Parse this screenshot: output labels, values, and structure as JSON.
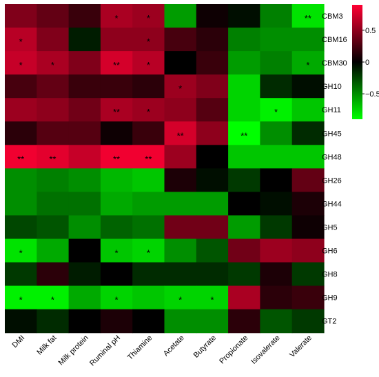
{
  "chart_data": {
    "type": "heatmap",
    "rows": [
      "CBM3",
      "CBM16",
      "CBM30",
      "GH10",
      "GH11",
      "GH45",
      "GH48",
      "GH26",
      "GH44",
      "GH5",
      "GH6",
      "GH8",
      "GH9",
      "GT2"
    ],
    "columns": [
      "DMI",
      "Milk fat",
      "Milk protein",
      "Ruminal pH",
      "Thiamine",
      "Acetate",
      "Butyrate",
      "Propionate",
      "Isovalerate",
      "Valerate"
    ],
    "values": [
      [
        0.45,
        0.35,
        0.2,
        0.6,
        0.55,
        -0.55,
        0.05,
        -0.05,
        -0.45,
        -0.8
      ],
      [
        0.65,
        0.45,
        -0.1,
        0.5,
        0.5,
        0.25,
        0.15,
        -0.45,
        -0.5,
        -0.5
      ],
      [
        0.7,
        0.6,
        0.45,
        0.75,
        0.65,
        0.0,
        0.2,
        -0.55,
        -0.45,
        -0.6
      ],
      [
        0.25,
        0.35,
        0.2,
        0.2,
        0.15,
        0.55,
        0.45,
        -0.75,
        -0.15,
        -0.05
      ],
      [
        0.55,
        0.5,
        0.4,
        0.6,
        0.55,
        0.5,
        0.3,
        -0.75,
        -0.85,
        -0.7
      ],
      [
        0.15,
        0.3,
        0.3,
        0.05,
        0.2,
        0.75,
        0.5,
        -0.9,
        -0.5,
        -0.15
      ],
      [
        0.85,
        0.8,
        0.7,
        0.85,
        0.85,
        0.55,
        0.0,
        -0.7,
        -0.7,
        -0.7
      ],
      [
        -0.5,
        -0.45,
        -0.5,
        -0.65,
        -0.7,
        0.1,
        -0.05,
        -0.2,
        0.0,
        0.35
      ],
      [
        -0.5,
        -0.4,
        -0.4,
        -0.6,
        -0.55,
        -0.55,
        -0.55,
        0.0,
        -0.05,
        0.1
      ],
      [
        -0.25,
        -0.3,
        -0.5,
        -0.35,
        -0.4,
        0.4,
        0.4,
        -0.55,
        -0.2,
        0.05
      ],
      [
        -0.8,
        -0.6,
        0.0,
        -0.7,
        -0.75,
        -0.5,
        -0.3,
        0.4,
        0.55,
        0.5
      ],
      [
        -0.2,
        0.15,
        -0.1,
        0.0,
        -0.15,
        -0.15,
        -0.15,
        -0.2,
        0.1,
        -0.2
      ],
      [
        -0.85,
        -0.85,
        -0.6,
        -0.75,
        -0.7,
        -0.75,
        -0.75,
        0.6,
        0.15,
        0.2
      ],
      [
        -0.05,
        -0.15,
        0.0,
        0.1,
        0.0,
        -0.5,
        -0.5,
        0.15,
        -0.3,
        -0.2
      ]
    ],
    "significance": [
      [
        "",
        "",
        "",
        "*",
        "*",
        "",
        "",
        "",
        "",
        "**"
      ],
      [
        "*",
        "",
        "",
        "",
        "*",
        "",
        "",
        "",
        "",
        ""
      ],
      [
        "*",
        "*",
        "",
        "**",
        "*",
        "",
        "",
        "",
        "",
        "*"
      ],
      [
        "",
        "",
        "",
        "",
        "",
        "*",
        "",
        "",
        "",
        ""
      ],
      [
        "",
        "",
        "",
        "**",
        "*",
        "",
        "",
        "",
        "*",
        ""
      ],
      [
        "",
        "",
        "",
        "",
        "",
        "**",
        "",
        "**",
        "",
        ""
      ],
      [
        "**",
        "**",
        "",
        "**",
        "**",
        "",
        "",
        "",
        "",
        ""
      ],
      [
        "",
        "",
        "",
        "",
        "",
        "",
        "",
        "",
        "",
        ""
      ],
      [
        "",
        "",
        "",
        "",
        "",
        "",
        "",
        "",
        "",
        ""
      ],
      [
        "",
        "",
        "",
        "",
        "",
        "",
        "",
        "",
        "",
        ""
      ],
      [
        "*",
        "",
        "",
        "*",
        "*",
        "",
        "",
        "",
        "",
        ""
      ],
      [
        "",
        "",
        "",
        "",
        "",
        "",
        "",
        "",
        "",
        ""
      ],
      [
        "*",
        "*",
        "",
        "*",
        "",
        "*",
        "*",
        "",
        "",
        ""
      ],
      [
        "",
        "",
        "",
        "",
        "",
        "",
        "",
        "",
        "",
        ""
      ]
    ],
    "colorscale": {
      "low": "#00ff00",
      "mid": "#000000",
      "high": "#ff0033"
    },
    "colorbar_ticks": [
      0.5,
      0,
      -0.5
    ],
    "colorbar_tick_labels": [
      "0.5",
      "0",
      "−0.5"
    ],
    "range": [
      -0.9,
      0.9
    ],
    "title": "",
    "xlabel": "",
    "ylabel": ""
  }
}
